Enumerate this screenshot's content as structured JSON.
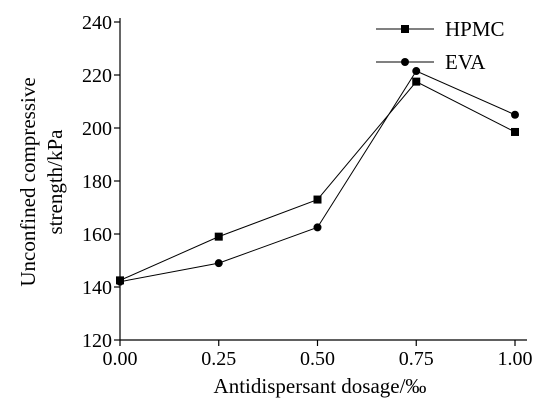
{
  "chart_data": {
    "type": "line",
    "xlabel": "Antidispersant dosage/‰",
    "ylabel_lines": [
      "Unconfined compressive",
      "strength/kPa"
    ],
    "xlim": [
      0,
      1
    ],
    "ylim": [
      120,
      240
    ],
    "x_ticks": [
      "0.00",
      "0.25",
      "0.50",
      "0.75",
      "1.00"
    ],
    "y_ticks": [
      "120",
      "140",
      "160",
      "180",
      "200",
      "220",
      "240"
    ],
    "x": [
      0,
      0.25,
      0.5,
      0.75,
      1.0
    ],
    "series": [
      {
        "name": "HPMC",
        "marker": "square",
        "values": [
          142.5,
          159,
          173,
          217.5,
          198.5
        ]
      },
      {
        "name": "EVA",
        "marker": "circle",
        "values": [
          142,
          149,
          162.5,
          221.5,
          205
        ]
      }
    ],
    "legend_position": "top-right",
    "grid": false,
    "color": "#000000"
  }
}
